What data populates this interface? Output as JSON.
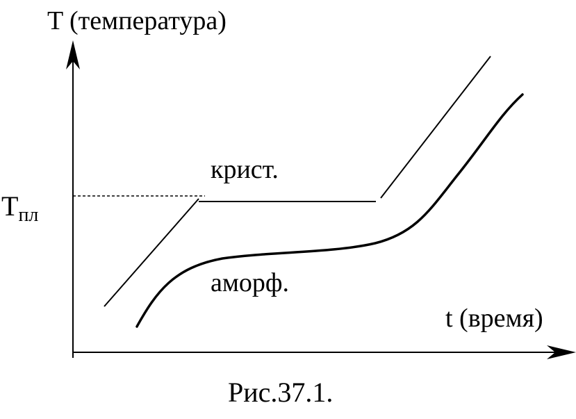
{
  "axes": {
    "y_label": "T (температура)",
    "x_label": "t (время)"
  },
  "melting_point": {
    "symbol": "T",
    "subscript": "пл"
  },
  "curves": {
    "crystalline_label": "крист.",
    "amorphous_label": "аморф."
  },
  "caption": "Рис.37.1."
}
